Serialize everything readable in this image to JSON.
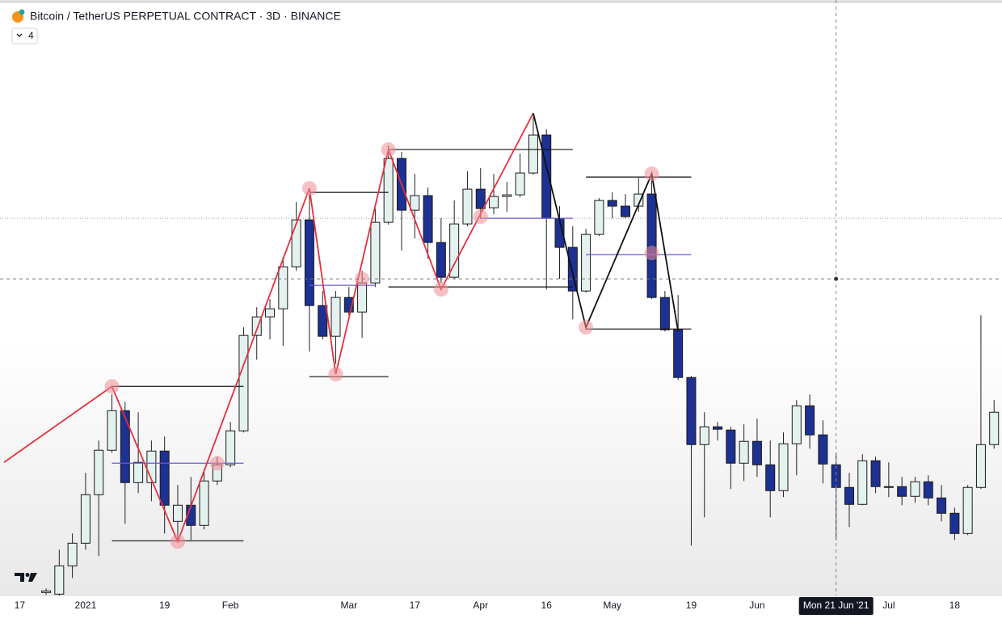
{
  "chart_data": {
    "type": "candlestick",
    "title": "Bitcoin / TetherUS PERPETUAL CONTRACT · 3D · BINANCE",
    "indicator_count": 4,
    "up_color": "#e3f2ef",
    "down_color": "#1c3192",
    "xlim": [
      -3.5,
      72.6
    ],
    "ylim": [
      29000,
      73500
    ],
    "xticks": [
      {
        "value": -2,
        "label": "17"
      },
      {
        "value": 3,
        "label": "2021"
      },
      {
        "value": 9,
        "label": "19"
      },
      {
        "value": 14,
        "label": "Feb"
      },
      {
        "value": 23,
        "label": "Mar"
      },
      {
        "value": 28,
        "label": "17"
      },
      {
        "value": 33,
        "label": "Apr"
      },
      {
        "value": 38,
        "label": "16"
      },
      {
        "value": 43,
        "label": "May"
      },
      {
        "value": 49,
        "label": "19"
      },
      {
        "value": 54,
        "label": "Jun"
      },
      {
        "value": 64,
        "label": "Jul"
      },
      {
        "value": 69,
        "label": "18"
      }
    ],
    "open": [
      29520,
      29400,
      31500,
      33180,
      36780,
      40080,
      43020,
      37680,
      37680,
      40020,
      34800,
      36000,
      34500,
      37800,
      39000,
      41520,
      48600,
      49980,
      50580,
      53700,
      57180,
      50820,
      48540,
      51420,
      50340,
      52500,
      57000,
      61740,
      57900,
      58980,
      55500,
      52920,
      56880,
      59460,
      58080,
      58920,
      59040,
      60660,
      63480,
      57300,
      55140,
      51900,
      56100,
      58620,
      58200,
      58200,
      59100,
      51420,
      49020,
      45480,
      40500,
      41820,
      41580,
      39120,
      40740,
      39000,
      37080,
      40560,
      43380,
      41220,
      39000,
      37320,
      36060,
      39300,
      37380,
      37380,
      36660,
      37740,
      36540,
      35400,
      33900,
      37320,
      40500
    ],
    "high": [
      29820,
      32700,
      33900,
      38400,
      40800,
      44220,
      43680,
      42900,
      40800,
      41100,
      37500,
      38100,
      38700,
      39600,
      42180,
      49200,
      50700,
      51300,
      54420,
      58500,
      59100,
      51900,
      51900,
      52200,
      53400,
      58020,
      62700,
      62220,
      60600,
      59580,
      57300,
      58620,
      60780,
      61020,
      60600,
      60000,
      62100,
      64800,
      63900,
      58200,
      56700,
      56520,
      58800,
      59220,
      59100,
      60300,
      60420,
      51900,
      51600,
      45600,
      42900,
      42180,
      41820,
      42000,
      42420,
      40800,
      41400,
      43800,
      44220,
      42300,
      39900,
      38400,
      39780,
      39600,
      39180,
      38100,
      38100,
      38220,
      37500,
      35820,
      37500,
      50100,
      43800
    ],
    "low": [
      29340,
      29280,
      30600,
      32700,
      32220,
      39900,
      34620,
      36900,
      36300,
      33900,
      33300,
      33420,
      34200,
      37500,
      38820,
      41400,
      46800,
      48300,
      47820,
      53400,
      47400,
      48300,
      46500,
      50100,
      48420,
      52200,
      56820,
      54900,
      55800,
      54300,
      52500,
      52800,
      56700,
      57300,
      57600,
      57780,
      58860,
      60540,
      52020,
      52800,
      49800,
      51780,
      55980,
      57300,
      57300,
      57780,
      51300,
      48900,
      45300,
      33000,
      35100,
      40800,
      37200,
      37800,
      38100,
      35100,
      36600,
      38220,
      40200,
      37620,
      33420,
      34380,
      36000,
      36900,
      36600,
      36000,
      36180,
      36000,
      34800,
      33420,
      33780,
      37200,
      40200
    ],
    "close": [
      29640,
      31500,
      33180,
      36780,
      40080,
      43020,
      37680,
      39180,
      40020,
      36000,
      36000,
      34500,
      37800,
      39000,
      41520,
      48600,
      49980,
      50580,
      53700,
      57180,
      50820,
      48540,
      51420,
      50340,
      52500,
      57000,
      61740,
      57900,
      58980,
      55500,
      52920,
      56880,
      59460,
      58020,
      58920,
      59040,
      60660,
      63480,
      57300,
      55140,
      51900,
      56100,
      58620,
      58200,
      57420,
      59100,
      51420,
      49020,
      45480,
      40500,
      41820,
      41640,
      39120,
      40740,
      39000,
      37080,
      40560,
      43380,
      41220,
      39060,
      37320,
      36060,
      39300,
      37380,
      37320,
      36660,
      37740,
      36540,
      35400,
      33900,
      37320,
      40500,
      42900
    ],
    "reference_price": 57300,
    "zigzags": [
      {
        "color": "#e5303c",
        "x": [
          -3.2,
          5,
          10,
          20,
          22,
          26,
          30,
          37
        ],
        "y": [
          39180,
          44820,
          33300,
          59520,
          45720,
          62400,
          52020,
          65100
        ]
      },
      {
        "color": "#111111",
        "x": [
          37,
          41,
          46,
          48
        ],
        "y": [
          65100,
          49200,
          60600,
          48900
        ]
      }
    ],
    "levels": [
      {
        "color": "#111111",
        "x": [
          5,
          15
        ],
        "y": 44820
      },
      {
        "color": "#111111",
        "x": [
          5,
          15
        ],
        "y": 33360
      },
      {
        "color": "#6a5acd",
        "x": [
          5,
          15
        ],
        "y": 39120
      },
      {
        "color": "#111111",
        "x": [
          20,
          26
        ],
        "y": 59220
      },
      {
        "color": "#111111",
        "x": [
          20,
          26
        ],
        "y": 45540
      },
      {
        "color": "#6a5acd",
        "x": [
          20,
          25
        ],
        "y": 52320
      },
      {
        "color": "#111111",
        "x": [
          26,
          40
        ],
        "y": 62400
      },
      {
        "color": "#111111",
        "x": [
          26,
          40
        ],
        "y": 52200
      },
      {
        "color": "#6a5acd",
        "x": [
          33,
          40
        ],
        "y": 57300
      },
      {
        "color": "#111111",
        "x": [
          41,
          49
        ],
        "y": 60360
      },
      {
        "color": "#111111",
        "x": [
          41,
          49
        ],
        "y": 49080
      },
      {
        "color": "#6a5acd",
        "x": [
          41,
          49
        ],
        "y": 54600
      }
    ],
    "markers": {
      "color": "#f08c96",
      "x": [
        5,
        10,
        13,
        20,
        22,
        24,
        26,
        30,
        33,
        41,
        46,
        46
      ],
      "y": [
        44820,
        33300,
        39120,
        59520,
        45720,
        52800,
        62400,
        52020,
        57420,
        49200,
        60600,
        54720
      ]
    },
    "crosshair": {
      "x": 60,
      "y": 52800,
      "label": "Mon 21 Jun '21"
    }
  }
}
